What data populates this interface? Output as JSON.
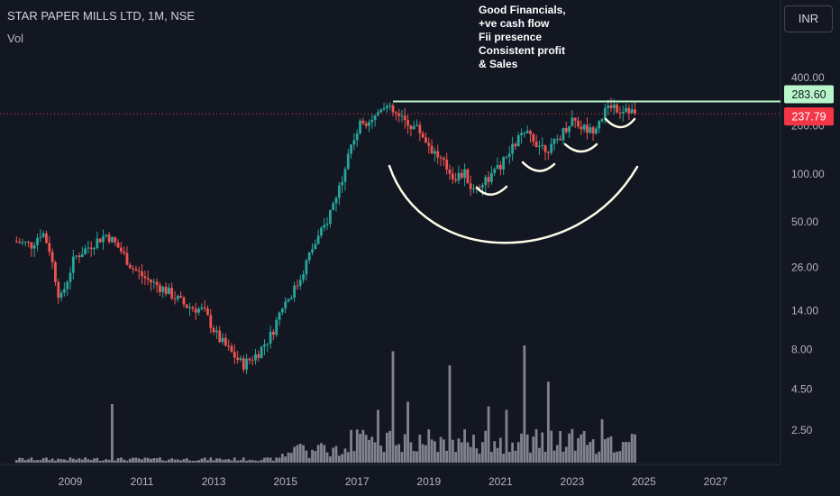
{
  "header": {
    "title": "STAR PAPER MILLS LTD, 1M, NSE",
    "volume_label": "Vol",
    "currency_button": "INR"
  },
  "annotation": {
    "lines": [
      "Good Financials,",
      "+ve cash flow",
      "Fii presence",
      "Consistent profit",
      "& Sales"
    ]
  },
  "price_labels": {
    "resistance": "283.60",
    "last": "237.79"
  },
  "colors": {
    "background": "#131722",
    "up": "#26a69a",
    "down": "#ef5350",
    "resistance_line": "#b9f6ca",
    "last_price_tag": "#f23645",
    "annotation_arc": "#fffde7",
    "volume_bar": "#9598a1"
  },
  "chart_data": {
    "type": "candlestick",
    "title": "STAR PAPER MILLS LTD, 1M, NSE",
    "scale": "log",
    "y_ticks": [
      400,
      200,
      100,
      50,
      26,
      14,
      8,
      4.5,
      2.5
    ],
    "y_tick_labels": [
      "400.00",
      "200.00",
      "100.00",
      "50.00",
      "26.00",
      "14.00",
      "8.00",
      "4.50",
      "2.50"
    ],
    "x_tick_labels": [
      "2009",
      "2011",
      "2013",
      "2015",
      "2017",
      "2019",
      "2021",
      "2023",
      "2025",
      "2027"
    ],
    "x_range": [
      2007.5,
      2029
    ],
    "resistance_level": 283.6,
    "last_price": 237.79,
    "price_path": [
      [
        2007.5,
        38
      ],
      [
        2008.0,
        36
      ],
      [
        2008.3,
        44
      ],
      [
        2008.5,
        34
      ],
      [
        2008.8,
        16
      ],
      [
        2009.2,
        30
      ],
      [
        2009.8,
        38
      ],
      [
        2010.1,
        42
      ],
      [
        2010.5,
        33
      ],
      [
        2010.8,
        26
      ],
      [
        2011.2,
        22
      ],
      [
        2011.7,
        19
      ],
      [
        2012.0,
        17
      ],
      [
        2012.3,
        15
      ],
      [
        2012.8,
        14
      ],
      [
        2013.2,
        9.5
      ],
      [
        2013.6,
        7.5
      ],
      [
        2013.9,
        6.4
      ],
      [
        2014.3,
        7.5
      ],
      [
        2014.7,
        10
      ],
      [
        2015.0,
        15
      ],
      [
        2015.4,
        20
      ],
      [
        2015.8,
        33
      ],
      [
        2016.2,
        48
      ],
      [
        2016.6,
        85
      ],
      [
        2016.9,
        150
      ],
      [
        2017.2,
        210
      ],
      [
        2017.6,
        230
      ],
      [
        2017.8,
        280
      ],
      [
        2018.0,
        250
      ],
      [
        2018.3,
        220
      ],
      [
        2018.8,
        190
      ],
      [
        2019.1,
        150
      ],
      [
        2019.5,
        115
      ],
      [
        2019.8,
        95
      ],
      [
        2020.1,
        100
      ],
      [
        2020.3,
        78
      ],
      [
        2020.6,
        90
      ],
      [
        2020.9,
        100
      ],
      [
        2021.3,
        130
      ],
      [
        2021.6,
        170
      ],
      [
        2021.9,
        175
      ],
      [
        2022.2,
        150
      ],
      [
        2022.5,
        145
      ],
      [
        2022.8,
        180
      ],
      [
        2023.1,
        225
      ],
      [
        2023.3,
        200
      ],
      [
        2023.6,
        185
      ],
      [
        2023.9,
        230
      ],
      [
        2024.2,
        275
      ],
      [
        2024.4,
        250
      ],
      [
        2024.6,
        265
      ],
      [
        2024.8,
        237.79
      ]
    ],
    "volume_spikes": [
      [
        2010.2,
        0.5
      ],
      [
        2017.6,
        0.45
      ],
      [
        2018.0,
        0.95
      ],
      [
        2018.4,
        0.52
      ],
      [
        2019.6,
        0.83
      ],
      [
        2020.7,
        0.48
      ],
      [
        2021.2,
        0.45
      ],
      [
        2021.7,
        1.0
      ],
      [
        2022.3,
        0.69
      ],
      [
        2023.8,
        0.37
      ]
    ]
  }
}
